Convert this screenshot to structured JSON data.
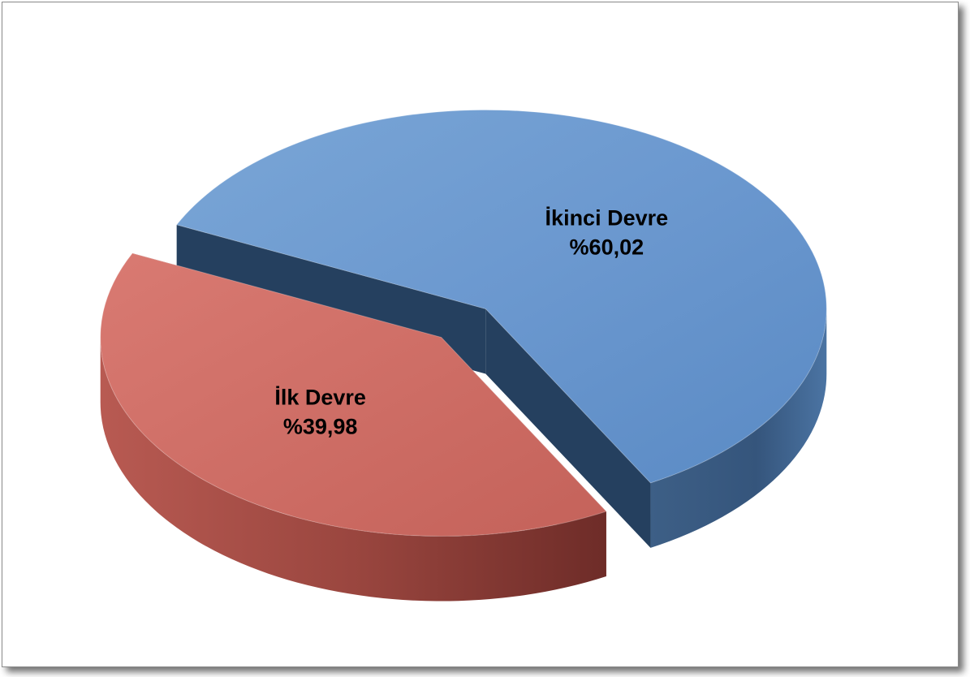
{
  "chart_data": {
    "type": "pie",
    "title": "",
    "slices": [
      {
        "name": "İkinci Devre",
        "label": "İkinci Devre",
        "value_label": "%60,02",
        "value": 60.02,
        "color": "#6b9bd1",
        "side_color": "#3c5f88"
      },
      {
        "name": "İlk Devre",
        "label": "İlk Devre",
        "value_label": "%39,98",
        "value": 39.98,
        "color": "#cd6c64",
        "side_color": "#8f3c36"
      }
    ],
    "legend": "none",
    "style": "3d-exploded"
  }
}
